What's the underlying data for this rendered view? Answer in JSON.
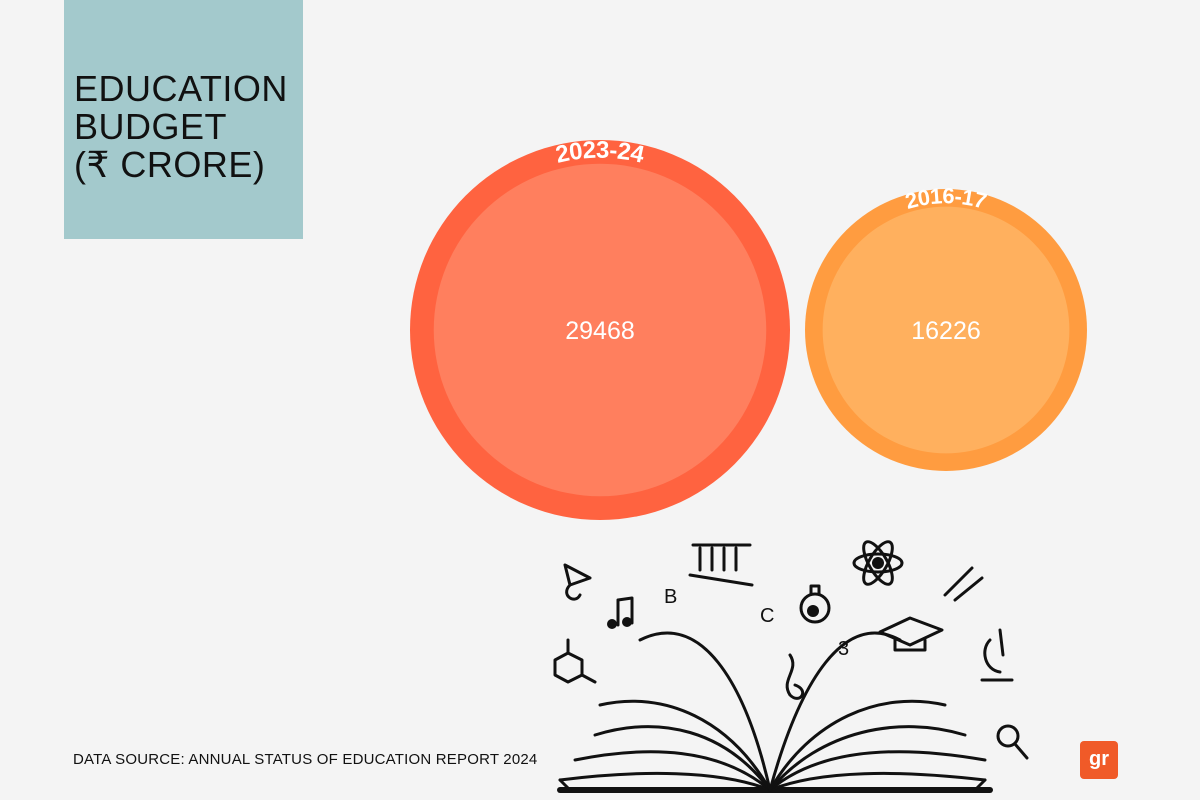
{
  "title": {
    "lines": [
      "EDUCATION",
      "BUDGET",
      "(₹ CRORE)"
    ]
  },
  "source": "DATA SOURCE: ANNUAL STATUS OF EDUCATION REPORT 2024",
  "logo_text": "gr",
  "colors": {
    "title_box": "#a3c9cc",
    "ring_2023": "#ff6340",
    "fill_2023": "#ff7f5e",
    "ring_2016": "#ff9c40",
    "fill_2016": "#ffb05e",
    "logo": "#f05a28"
  },
  "chart_data": {
    "type": "bubble",
    "title": "EDUCATION BUDGET (₹ CRORE)",
    "categories": [
      "2023-24",
      "2016-17"
    ],
    "values": [
      29468,
      16226
    ],
    "value_labels": [
      "29468",
      "16226"
    ]
  }
}
